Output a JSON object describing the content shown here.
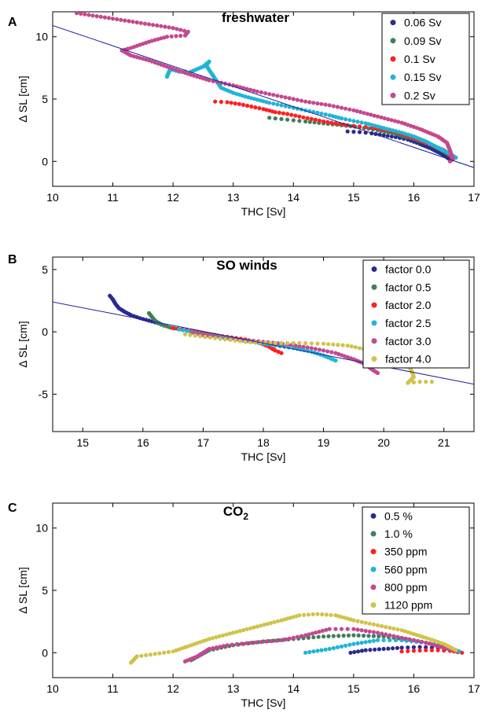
{
  "chart_data": [
    {
      "type": "scatter",
      "panel_letter": "A",
      "title": "freshwater",
      "xlabel": "THC [Sv]",
      "ylabel": "Δ SL [cm]",
      "xlim": [
        10,
        17
      ],
      "ylim": [
        -2,
        12
      ],
      "xticks": [
        10,
        11,
        12,
        13,
        14,
        15,
        16,
        17
      ],
      "yticks": [
        0,
        5,
        10
      ],
      "legend_position": "top-right",
      "fit_line": {
        "x": [
          10,
          17
        ],
        "y": [
          10.9,
          -0.5
        ]
      },
      "series": [
        {
          "name": "0.06 Sv",
          "color": "#2b2b8f",
          "points": [
            [
              14.9,
              2.4
            ],
            [
              15.1,
              2.35
            ],
            [
              15.3,
              2.25
            ],
            [
              15.5,
              2.1
            ],
            [
              15.7,
              1.95
            ],
            [
              15.9,
              1.75
            ],
            [
              16.1,
              1.4
            ],
            [
              16.3,
              1.0
            ],
            [
              16.5,
              0.5
            ],
            [
              16.6,
              0.15
            ]
          ]
        },
        {
          "name": "0.09 Sv",
          "color": "#3f7f5a",
          "points": [
            [
              13.6,
              3.5
            ],
            [
              13.8,
              3.4
            ],
            [
              14.0,
              3.3
            ],
            [
              14.2,
              3.2
            ],
            [
              14.5,
              3.05
            ],
            [
              14.8,
              2.9
            ],
            [
              15.1,
              2.75
            ],
            [
              15.4,
              2.5
            ],
            [
              15.7,
              2.2
            ],
            [
              16.0,
              1.8
            ],
            [
              16.3,
              1.3
            ],
            [
              16.5,
              0.8
            ],
            [
              16.65,
              0.3
            ]
          ]
        },
        {
          "name": "0.1 Sv",
          "color": "#ff1f1f",
          "points": [
            [
              12.7,
              4.8
            ],
            [
              12.9,
              4.75
            ],
            [
              13.1,
              4.6
            ],
            [
              13.3,
              4.4
            ],
            [
              13.5,
              4.2
            ],
            [
              13.7,
              3.95
            ],
            [
              13.9,
              3.8
            ],
            [
              14.1,
              3.6
            ],
            [
              14.3,
              3.4
            ],
            [
              14.5,
              3.2
            ],
            [
              14.7,
              3.05
            ],
            [
              14.9,
              2.9
            ],
            [
              15.1,
              2.8
            ],
            [
              15.3,
              2.7
            ],
            [
              15.5,
              2.55
            ],
            [
              15.7,
              2.35
            ],
            [
              15.9,
              2.05
            ],
            [
              16.1,
              1.7
            ],
            [
              16.3,
              1.3
            ],
            [
              16.5,
              0.9
            ],
            [
              16.6,
              0.5
            ],
            [
              16.65,
              0.2
            ]
          ]
        },
        {
          "name": "0.15 Sv",
          "color": "#1fb5d6",
          "points": [
            [
              11.9,
              6.8
            ],
            [
              11.95,
              7.4
            ],
            [
              12.1,
              7.2
            ],
            [
              12.3,
              7.2
            ],
            [
              12.5,
              7.6
            ],
            [
              12.6,
              8.0
            ],
            [
              12.55,
              7.7
            ],
            [
              12.8,
              5.9
            ],
            [
              13.0,
              5.5
            ],
            [
              13.2,
              5.2
            ],
            [
              13.4,
              4.95
            ],
            [
              13.6,
              4.7
            ],
            [
              13.8,
              4.5
            ],
            [
              14.0,
              4.3
            ],
            [
              14.2,
              4.1
            ],
            [
              14.4,
              3.9
            ],
            [
              14.6,
              3.7
            ],
            [
              14.8,
              3.45
            ],
            [
              15.0,
              3.25
            ],
            [
              15.2,
              3.05
            ],
            [
              15.4,
              2.8
            ],
            [
              15.6,
              2.55
            ],
            [
              15.8,
              2.3
            ],
            [
              16.0,
              2.0
            ],
            [
              16.2,
              1.6
            ],
            [
              16.4,
              1.1
            ],
            [
              16.6,
              0.6
            ],
            [
              16.7,
              0.3
            ]
          ]
        },
        {
          "name": "0.2 Sv",
          "color": "#c4488f",
          "points": [
            [
              10.4,
              11.9
            ],
            [
              10.8,
              11.6
            ],
            [
              11.2,
              11.3
            ],
            [
              11.6,
              11.0
            ],
            [
              12.0,
              10.7
            ],
            [
              12.25,
              10.4
            ],
            [
              12.2,
              10.1
            ],
            [
              11.9,
              10.0
            ],
            [
              11.6,
              9.6
            ],
            [
              11.3,
              9.1
            ],
            [
              11.15,
              8.9
            ],
            [
              11.3,
              8.5
            ],
            [
              11.6,
              8.1
            ],
            [
              11.9,
              7.6
            ],
            [
              12.2,
              7.1
            ],
            [
              12.6,
              6.5
            ],
            [
              13.0,
              6.1
            ],
            [
              13.4,
              5.6
            ],
            [
              13.8,
              5.2
            ],
            [
              14.2,
              4.8
            ],
            [
              14.6,
              4.5
            ],
            [
              15.0,
              4.1
            ],
            [
              15.4,
              3.6
            ],
            [
              15.8,
              3.1
            ],
            [
              16.1,
              2.6
            ],
            [
              16.4,
              2.0
            ],
            [
              16.55,
              1.5
            ],
            [
              16.6,
              0.9
            ],
            [
              16.65,
              0.2
            ],
            [
              16.6,
              0.0
            ]
          ]
        }
      ]
    },
    {
      "type": "scatter",
      "panel_letter": "B",
      "title": "SO winds",
      "xlabel": "THC [Sv]",
      "ylabel": "Δ SL [cm]",
      "xlim": [
        14.5,
        21.5
      ],
      "ylim": [
        -8,
        6
      ],
      "xticks": [
        15,
        16,
        17,
        18,
        19,
        20,
        21
      ],
      "yticks": [
        -5,
        0,
        5
      ],
      "legend_position": "top-right",
      "fit_line": {
        "x": [
          14.5,
          21.5
        ],
        "y": [
          2.4,
          -4.2
        ]
      },
      "series": [
        {
          "name": "factor 0.0",
          "color": "#2b2b8f",
          "points": [
            [
              15.45,
              2.9
            ],
            [
              15.5,
              2.6
            ],
            [
              15.55,
              2.2
            ],
            [
              15.6,
              1.9
            ],
            [
              15.7,
              1.6
            ],
            [
              15.8,
              1.35
            ],
            [
              15.95,
              1.1
            ],
            [
              16.1,
              0.9
            ],
            [
              16.25,
              0.7
            ],
            [
              16.35,
              0.5
            ]
          ]
        },
        {
          "name": "factor 0.5",
          "color": "#3f7f5a",
          "points": [
            [
              16.1,
              1.5
            ],
            [
              16.15,
              1.2
            ],
            [
              16.2,
              0.9
            ],
            [
              16.3,
              0.6
            ],
            [
              16.45,
              0.35
            ],
            [
              16.6,
              0.2
            ],
            [
              16.8,
              0.05
            ],
            [
              17.0,
              -0.1
            ],
            [
              17.2,
              -0.25
            ],
            [
              17.3,
              -0.4
            ]
          ]
        },
        {
          "name": "factor 2.0",
          "color": "#ff1f1f",
          "points": [
            [
              16.5,
              0.3
            ],
            [
              16.8,
              0.1
            ],
            [
              17.1,
              -0.2
            ],
            [
              17.4,
              -0.4
            ],
            [
              17.7,
              -0.6
            ],
            [
              17.95,
              -0.9
            ],
            [
              18.1,
              -1.2
            ],
            [
              18.2,
              -1.5
            ],
            [
              18.3,
              -1.7
            ]
          ]
        },
        {
          "name": "factor 2.5",
          "color": "#1fb5d6",
          "points": [
            [
              16.6,
              0.2
            ],
            [
              17.0,
              -0.2
            ],
            [
              17.4,
              -0.5
            ],
            [
              17.8,
              -0.8
            ],
            [
              18.2,
              -1.1
            ],
            [
              18.5,
              -1.3
            ],
            [
              18.8,
              -1.6
            ],
            [
              19.0,
              -1.9
            ],
            [
              19.2,
              -2.3
            ]
          ]
        },
        {
          "name": "factor 3.0",
          "color": "#c4488f",
          "points": [
            [
              16.8,
              -0.1
            ],
            [
              17.2,
              -0.4
            ],
            [
              17.6,
              -0.6
            ],
            [
              18.0,
              -0.8
            ],
            [
              18.4,
              -1.0
            ],
            [
              18.8,
              -1.3
            ],
            [
              19.2,
              -1.7
            ],
            [
              19.5,
              -2.2
            ],
            [
              19.7,
              -2.6
            ],
            [
              19.8,
              -3.0
            ],
            [
              19.9,
              -3.3
            ]
          ]
        },
        {
          "name": "factor 4.0",
          "color": "#cfc44a",
          "points": [
            [
              16.7,
              -0.2
            ],
            [
              17.2,
              -0.5
            ],
            [
              17.7,
              -0.8
            ],
            [
              18.2,
              -0.9
            ],
            [
              18.6,
              -0.9
            ],
            [
              19.0,
              -0.95
            ],
            [
              19.4,
              -1.1
            ],
            [
              19.8,
              -1.5
            ],
            [
              20.1,
              -1.9
            ],
            [
              20.35,
              -2.4
            ],
            [
              20.45,
              -3.0
            ],
            [
              20.5,
              -3.6
            ],
            [
              20.4,
              -4.1
            ],
            [
              20.6,
              -4.0
            ],
            [
              20.8,
              -4.0
            ]
          ]
        }
      ]
    },
    {
      "type": "scatter",
      "panel_letter": "C",
      "title": "CO",
      "title_subscript": "2",
      "xlabel": "THC [Sv]",
      "ylabel": "Δ SL [cm]",
      "xlim": [
        10,
        17
      ],
      "ylim": [
        -2,
        12
      ],
      "xticks": [
        10,
        11,
        12,
        13,
        14,
        15,
        16,
        17
      ],
      "yticks": [
        0,
        5,
        10
      ],
      "legend_position": "top-right",
      "series": [
        {
          "name": "0.5 %",
          "color": "#2b2b8f",
          "points": [
            [
              14.95,
              0.0
            ],
            [
              15.2,
              0.2
            ],
            [
              15.5,
              0.3
            ],
            [
              15.8,
              0.4
            ],
            [
              16.1,
              0.45
            ],
            [
              16.4,
              0.4
            ],
            [
              16.6,
              0.3
            ],
            [
              16.75,
              0.1
            ]
          ]
        },
        {
          "name": "1.0 %",
          "color": "#3f7f5a",
          "points": [
            [
              12.3,
              -0.6
            ],
            [
              12.6,
              0.2
            ],
            [
              13.0,
              0.6
            ],
            [
              13.5,
              0.9
            ],
            [
              14.0,
              1.1
            ],
            [
              14.5,
              1.3
            ],
            [
              15.0,
              1.4
            ],
            [
              15.5,
              1.3
            ],
            [
              16.0,
              1.0
            ],
            [
              16.4,
              0.6
            ],
            [
              16.7,
              0.2
            ]
          ]
        },
        {
          "name": "350 ppm",
          "color": "#ff1f1f",
          "points": [
            [
              15.8,
              0.1
            ],
            [
              16.0,
              0.15
            ],
            [
              16.2,
              0.2
            ],
            [
              16.4,
              0.2
            ],
            [
              16.6,
              0.15
            ],
            [
              16.8,
              0.0
            ]
          ]
        },
        {
          "name": "560 ppm",
          "color": "#1fb5d6",
          "points": [
            [
              14.2,
              0.0
            ],
            [
              14.6,
              0.3
            ],
            [
              15.0,
              0.7
            ],
            [
              15.4,
              1.0
            ],
            [
              15.8,
              1.0
            ],
            [
              16.2,
              0.8
            ],
            [
              16.6,
              0.4
            ],
            [
              16.75,
              0.1
            ]
          ]
        },
        {
          "name": "800 ppm",
          "color": "#c4488f",
          "points": [
            [
              12.2,
              -0.7
            ],
            [
              12.4,
              -0.3
            ],
            [
              12.6,
              0.3
            ],
            [
              12.9,
              0.6
            ],
            [
              13.3,
              0.8
            ],
            [
              13.8,
              1.0
            ],
            [
              14.2,
              1.4
            ],
            [
              14.6,
              1.9
            ],
            [
              15.0,
              1.9
            ],
            [
              15.4,
              1.6
            ],
            [
              15.8,
              1.2
            ],
            [
              16.2,
              0.8
            ],
            [
              16.5,
              0.4
            ],
            [
              16.7,
              0.1
            ]
          ]
        },
        {
          "name": "1120 ppm",
          "color": "#cfc44a",
          "points": [
            [
              11.3,
              -0.8
            ],
            [
              11.4,
              -0.3
            ],
            [
              11.7,
              -0.1
            ],
            [
              12.0,
              0.1
            ],
            [
              12.3,
              0.6
            ],
            [
              12.6,
              1.1
            ],
            [
              13.0,
              1.6
            ],
            [
              13.4,
              2.1
            ],
            [
              13.8,
              2.6
            ],
            [
              14.1,
              3.0
            ],
            [
              14.4,
              3.1
            ],
            [
              14.7,
              3.0
            ],
            [
              15.0,
              2.6
            ],
            [
              15.4,
              2.2
            ],
            [
              15.8,
              1.8
            ],
            [
              16.2,
              1.2
            ],
            [
              16.5,
              0.7
            ],
            [
              16.7,
              0.2
            ]
          ]
        }
      ]
    }
  ]
}
